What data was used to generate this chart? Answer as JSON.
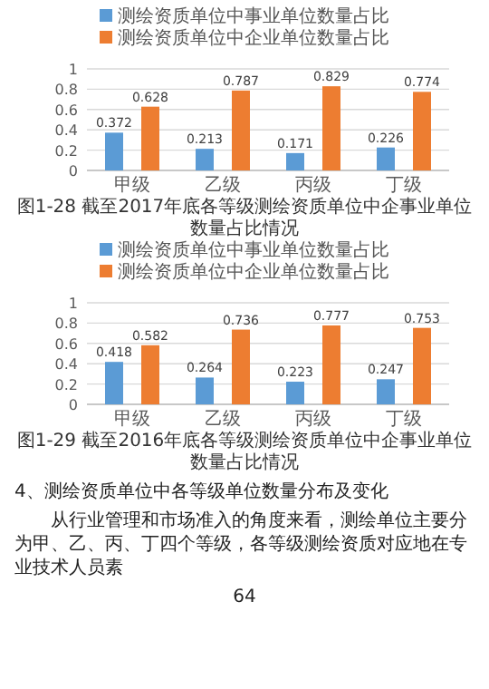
{
  "chart_data": [
    {
      "type": "bar",
      "title": "图1-28 截至2017年底各等级测绘资质单位中企事业单位数量占比情况",
      "categories": [
        "甲级",
        "乙级",
        "丙级",
        "丁级"
      ],
      "series": [
        {
          "name": "测绘资质单位中事业单位数量占比",
          "color": "#5b9bd5",
          "values": [
            0.372,
            0.213,
            0.171,
            0.226
          ]
        },
        {
          "name": "测绘资质单位中企业单位数量占比",
          "color": "#ed7d31",
          "values": [
            0.628,
            0.787,
            0.829,
            0.774
          ]
        }
      ],
      "ylim": [
        0,
        1
      ],
      "yticks": [
        0,
        0.2,
        0.4,
        0.6,
        0.8,
        1
      ],
      "grid": "y",
      "legend": "top",
      "data_labels": true
    },
    {
      "type": "bar",
      "title": "图1-29 截至2016年底各等级测绘资质单位中企事业单位数量占比情况",
      "categories": [
        "甲级",
        "乙级",
        "丙级",
        "丁级"
      ],
      "series": [
        {
          "name": "测绘资质单位中事业单位数量占比",
          "color": "#5b9bd5",
          "values": [
            0.418,
            0.264,
            0.223,
            0.247
          ]
        },
        {
          "name": "测绘资质单位中企业单位数量占比",
          "color": "#ed7d31",
          "values": [
            0.582,
            0.736,
            0.777,
            0.753
          ]
        }
      ],
      "ylim": [
        0,
        1
      ],
      "yticks": [
        0,
        0.2,
        0.4,
        0.6,
        0.8,
        1
      ],
      "grid": "y",
      "legend": "top",
      "data_labels": true,
      "annotations": [
        "4、测绘资质单位中各等级单位数量分布及变化",
        "从行业管理和市场准入的角度来看，测绘单位主要分为甲、乙、丙、丁四个等级，各等级测绘资质对应地在专业技术人员素",
        "64"
      ]
    }
  ]
}
